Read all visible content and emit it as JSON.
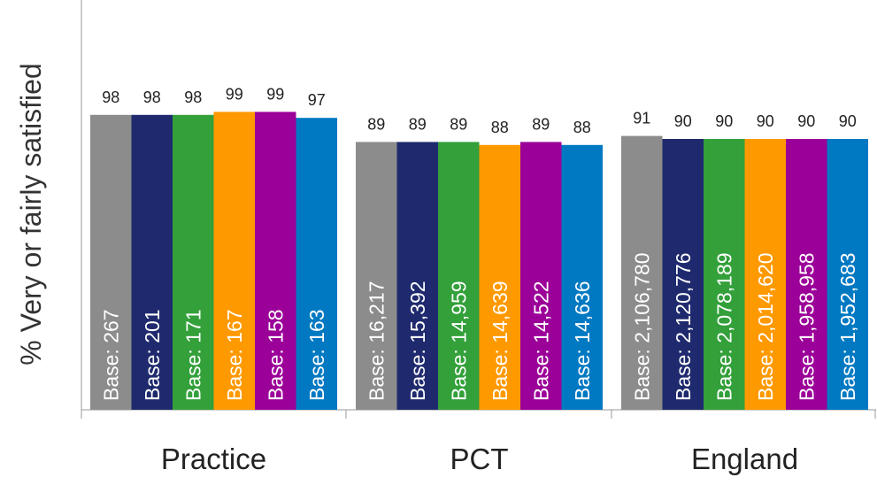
{
  "chart_data": {
    "type": "bar",
    "ylabel": "% Very or fairly satisfied",
    "ylim": [
      0,
      100
    ],
    "categories": [
      "Practice",
      "PCT",
      "England"
    ],
    "series_colors": [
      "#8c8c8c",
      "#1f2a6e",
      "#33a03a",
      "#ff9900",
      "#9b0099",
      "#0079c2"
    ],
    "groups": [
      {
        "category": "Practice",
        "values": [
          98,
          98,
          98,
          99,
          99,
          97
        ],
        "bases": [
          "Base: 267",
          "Base: 201",
          "Base: 171",
          "Base: 167",
          "Base: 158",
          "Base: 163"
        ]
      },
      {
        "category": "PCT",
        "values": [
          89,
          89,
          89,
          88,
          89,
          88
        ],
        "bases": [
          "Base: 16,217",
          "Base: 15,392",
          "Base: 14,959",
          "Base: 14,639",
          "Base: 14,522",
          "Base: 14,636"
        ]
      },
      {
        "category": "England",
        "values": [
          91,
          90,
          90,
          90,
          90,
          90
        ],
        "bases": [
          "Base: 2,106,780",
          "Base: 2,120,776",
          "Base: 2,078,189",
          "Base: 2,014,620",
          "Base: 1,958,958",
          "Base: 1,952,683"
        ]
      }
    ]
  }
}
